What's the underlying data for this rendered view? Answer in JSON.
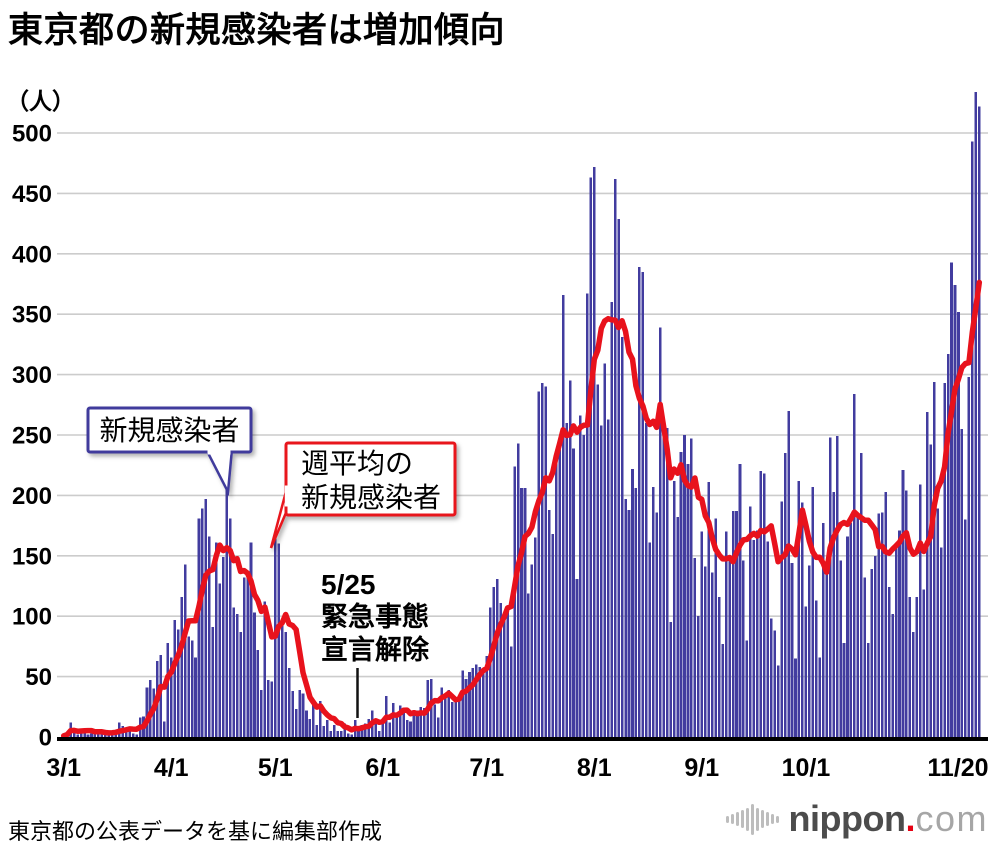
{
  "header": {
    "title": "東京都の新規感染者は増加傾向"
  },
  "footer": {
    "source": "東京都の公表データを基に編集部作成"
  },
  "logo": {
    "name": "nippon.com",
    "text_bold": "nippon",
    "dot": ".",
    "text_light": "com"
  },
  "chart_data": {
    "type": "bar",
    "title": "東京都の新規感染者は増加傾向",
    "unit_label": "（人）",
    "xlabel": "",
    "ylabel": "人",
    "ylim": [
      0,
      545
    ],
    "grid": "horizontal",
    "y_ticks": [
      0,
      50,
      100,
      150,
      200,
      250,
      300,
      350,
      400,
      450,
      500
    ],
    "x_ticks": [
      {
        "label": "3/1",
        "day": 0
      },
      {
        "label": "4/1",
        "day": 31
      },
      {
        "label": "5/1",
        "day": 61
      },
      {
        "label": "6/1",
        "day": 92
      },
      {
        "label": "7/1",
        "day": 122
      },
      {
        "label": "8/1",
        "day": 153
      },
      {
        "label": "9/1",
        "day": 184
      },
      {
        "label": "10/1",
        "day": 214
      },
      {
        "label": "11/20",
        "day": 264
      }
    ],
    "date_range": {
      "start": "3/1",
      "end": "11/20"
    },
    "colors": {
      "bar": "#423c9f",
      "line": "#e8121c",
      "grid": "#cccccc",
      "axis": "#000000",
      "callout_blue": "#3f3a9c",
      "callout_red": "#e8121c"
    },
    "series": [
      {
        "name": "新規感染者",
        "type": "bar",
        "color": "#423c9f",
        "values": [
          1,
          3,
          12,
          6,
          2,
          6,
          6,
          2,
          3,
          6,
          5,
          2,
          2,
          4,
          3,
          5,
          12,
          9,
          7,
          7,
          3,
          2,
          16,
          17,
          41,
          47,
          40,
          63,
          68,
          13,
          78,
          66,
          97,
          89,
          116,
          143,
          83,
          80,
          66,
          181,
          189,
          197,
          166,
          91,
          161,
          127,
          149,
          206,
          181,
          107,
          102,
          87,
          132,
          134,
          161,
          103,
          72,
          39,
          112,
          47,
          46,
          165,
          160,
          93,
          87,
          57,
          38,
          23,
          39,
          36,
          22,
          15,
          28,
          10,
          30,
          9,
          14,
          5,
          10,
          5,
          5,
          11,
          3,
          2,
          14,
          8,
          10,
          11,
          15,
          22,
          14,
          5,
          13,
          34,
          12,
          28,
          20,
          26,
          22,
          14,
          13,
          18,
          22,
          25,
          24,
          47,
          48,
          27,
          16,
          41,
          35,
          39,
          29,
          29,
          31,
          55,
          48,
          54,
          57,
          60,
          58,
          54,
          67,
          107,
          124,
          131,
          111,
          102,
          106,
          75,
          224,
          243,
          206,
          206,
          119,
          143,
          165,
          286,
          293,
          290,
          188,
          168,
          237,
          238,
          366,
          260,
          295,
          239,
          131,
          266,
          250,
          367,
          463,
          472,
          292,
          258,
          309,
          263,
          360,
          462,
          429,
          331,
          197,
          188,
          222,
          206,
          389,
          385,
          260,
          161,
          207,
          186,
          339,
          258,
          256,
          95,
          212,
          182,
          236,
          250,
          226,
          247,
          148,
          100,
          170,
          141,
          211,
          136,
          181,
          116,
          77,
          170,
          149,
          187,
          187,
          226,
          146,
          80,
          191,
          163,
          171,
          220,
          218,
          162,
          98,
          88,
          59,
          195,
          235,
          270,
          144,
          65,
          212,
          194,
          108,
          142,
          207,
          113,
          66,
          177,
          142,
          248,
          203,
          249,
          146,
          78,
          166,
          177,
          284,
          184,
          235,
          132,
          78,
          139,
          150,
          185,
          186,
          203,
          124,
          102,
          158,
          171,
          221,
          204,
          116,
          87,
          116,
          209,
          122,
          269,
          242,
          294,
          189,
          157,
          293,
          317,
          393,
          374,
          352,
          255,
          180,
          298,
          493,
          534,
          522
        ]
      },
      {
        "name": "週平均の新規感染者",
        "type": "line",
        "color": "#e8121c",
        "moving_average_window": 7
      }
    ],
    "annotations": {
      "bar_callout": "新規感染者",
      "line_callout_line1": "週平均の",
      "line_callout_line2": "新規感染者",
      "event_date": "5/25",
      "event_text_line1": "緊急事態",
      "event_text_line2": "宣言解除"
    }
  }
}
